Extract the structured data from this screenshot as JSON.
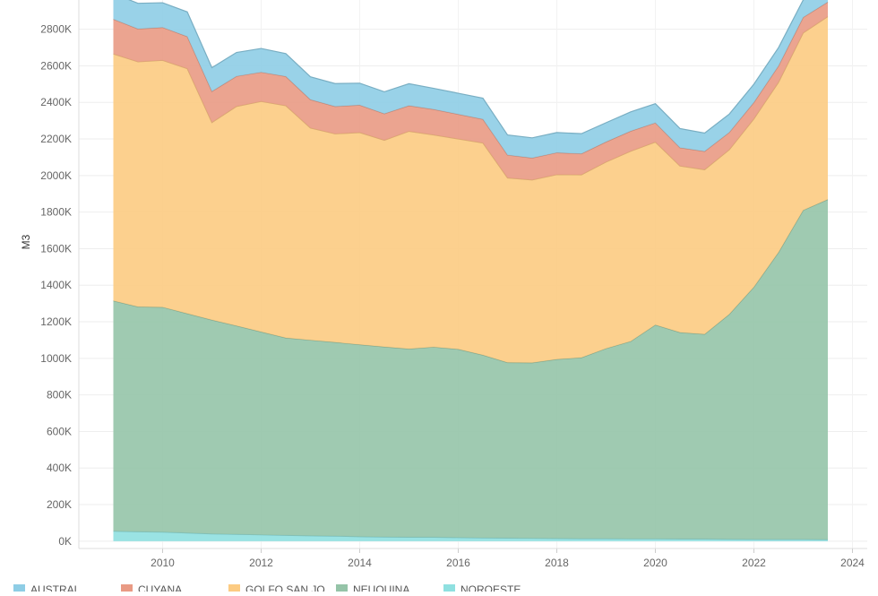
{
  "chart_data": {
    "type": "area",
    "stacked": true,
    "title": "",
    "xlabel": "",
    "ylabel": "M3",
    "x_unit": "year",
    "xlim": [
      2008.3,
      2024.3
    ],
    "ylim": [
      -40000,
      2960000
    ],
    "x_ticks": [
      2010,
      2012,
      2014,
      2016,
      2018,
      2020,
      2022,
      2024
    ],
    "y_ticks": [
      0,
      200000,
      400000,
      600000,
      800000,
      1000000,
      1200000,
      1400000,
      1600000,
      1800000,
      2000000,
      2200000,
      2400000,
      2600000,
      2800000
    ],
    "y_tick_labels": [
      "0K",
      "200K",
      "400K",
      "600K",
      "800K",
      "1000K",
      "1200K",
      "1400K",
      "1600K",
      "1800K",
      "2000K",
      "2200K",
      "2400K",
      "2600K",
      "2800K"
    ],
    "x_tick_labels": [
      "2010",
      "2012",
      "2014",
      "2016",
      "2018",
      "2020",
      "2022",
      "2024"
    ],
    "grid": true,
    "legend_position": "bottom-left",
    "x": [
      2009.0,
      2009.5,
      2010.0,
      2010.5,
      2011.0,
      2011.5,
      2012.0,
      2012.5,
      2013.0,
      2013.5,
      2014.0,
      2014.5,
      2015.0,
      2015.5,
      2016.0,
      2016.5,
      2017.0,
      2017.5,
      2018.0,
      2018.5,
      2019.0,
      2019.5,
      2020.0,
      2020.5,
      2021.0,
      2021.5,
      2022.0,
      2022.5,
      2023.0,
      2023.5
    ],
    "series": [
      {
        "name": "NOROESTE",
        "color": "#8FE0E0",
        "values": [
          55000,
          52000,
          50000,
          45000,
          40000,
          38000,
          35000,
          32000,
          30000,
          28000,
          25000,
          23000,
          22000,
          22000,
          20000,
          18000,
          17000,
          16000,
          15000,
          14000,
          14000,
          13000,
          13000,
          12000,
          12000,
          11000,
          10000,
          10000,
          10000,
          9000
        ]
      },
      {
        "name": "NEUQUINA",
        "color": "#95C4A8",
        "values": [
          1260000,
          1230000,
          1230000,
          1200000,
          1170000,
          1140000,
          1110000,
          1080000,
          1070000,
          1060000,
          1050000,
          1040000,
          1030000,
          1040000,
          1030000,
          1000000,
          960000,
          960000,
          980000,
          990000,
          1040000,
          1080000,
          1170000,
          1130000,
          1120000,
          1230000,
          1380000,
          1570000,
          1800000,
          1860000
        ]
      },
      {
        "name": "GOLFO SAN JO...",
        "color": "#FCCB82",
        "values": [
          1350000,
          1340000,
          1350000,
          1340000,
          1080000,
          1200000,
          1260000,
          1270000,
          1160000,
          1140000,
          1160000,
          1130000,
          1190000,
          1160000,
          1150000,
          1160000,
          1010000,
          1000000,
          1010000,
          1000000,
          1020000,
          1040000,
          1000000,
          910000,
          900000,
          900000,
          920000,
          930000,
          970000,
          1000000
        ]
      },
      {
        "name": "CUYANA",
        "color": "#E99A84",
        "values": [
          190000,
          180000,
          180000,
          175000,
          170000,
          165000,
          160000,
          160000,
          155000,
          150000,
          150000,
          145000,
          140000,
          140000,
          135000,
          130000,
          125000,
          120000,
          120000,
          115000,
          110000,
          110000,
          105000,
          100000,
          100000,
          95000,
          90000,
          90000,
          85000,
          80000
        ]
      },
      {
        "name": "AUSTRAL",
        "color": "#8ECDE5",
        "values": [
          140000,
          140000,
          135000,
          135000,
          130000,
          130000,
          130000,
          125000,
          125000,
          125000,
          120000,
          120000,
          120000,
          115000,
          115000,
          115000,
          110000,
          110000,
          110000,
          110000,
          105000,
          105000,
          105000,
          105000,
          100000,
          100000,
          100000,
          100000,
          95000,
          95000
        ]
      }
    ],
    "legend_order": [
      "AUSTRAL",
      "CUYANA",
      "GOLFO SAN JO...",
      "NEUQUINA",
      "NOROESTE"
    ],
    "legend_colors": [
      "#8ECDE5",
      "#E99A84",
      "#FCCB82",
      "#95C4A8",
      "#8FE0E0"
    ]
  }
}
